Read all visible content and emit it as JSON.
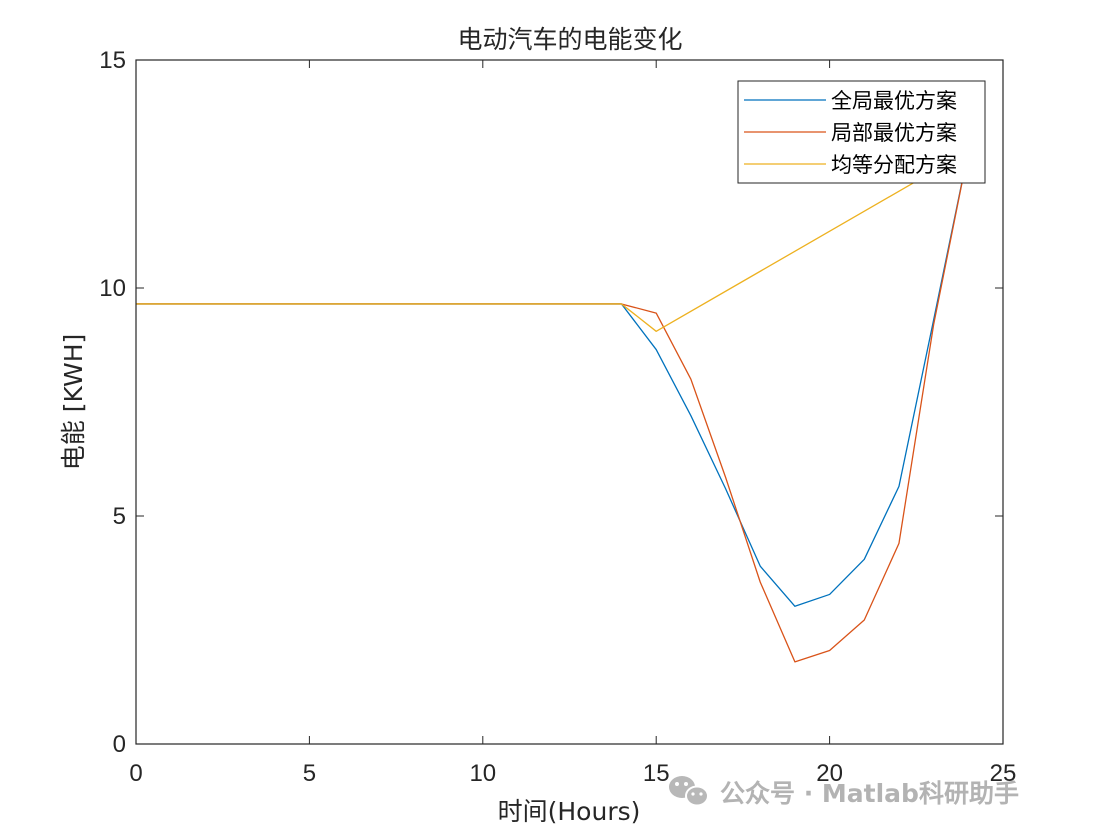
{
  "chart_data": {
    "type": "line",
    "title": "电动汽车的电能变化",
    "xlabel": "时间(Hours)",
    "ylabel": "电能 [KWH]",
    "xlim": [
      0,
      25
    ],
    "ylim": [
      0,
      15
    ],
    "xticks": [
      0,
      5,
      10,
      15,
      20,
      25
    ],
    "yticks": [
      0,
      5,
      10,
      15
    ],
    "grid": false,
    "legend_position": "top-right",
    "series": [
      {
        "name": "全局最优方案",
        "color": "#0072BD",
        "x": [
          0,
          14,
          15,
          16,
          17,
          18,
          19,
          20,
          21,
          22,
          23,
          24
        ],
        "y": [
          9.65,
          9.65,
          8.65,
          7.2,
          5.6,
          3.9,
          3.02,
          3.28,
          4.05,
          5.65,
          9.3,
          13.0
        ]
      },
      {
        "name": "局部最优方案",
        "color": "#D95319",
        "x": [
          0,
          14,
          15,
          16,
          17,
          18,
          19,
          20,
          21,
          22,
          23,
          24
        ],
        "y": [
          9.65,
          9.65,
          9.45,
          8.0,
          5.85,
          3.55,
          1.8,
          2.05,
          2.72,
          4.4,
          9.2,
          13.0
        ]
      },
      {
        "name": "均等分配方案",
        "color": "#EDB120",
        "x": [
          0,
          14,
          15,
          24
        ],
        "y": [
          9.65,
          9.65,
          9.05,
          13.0
        ]
      }
    ]
  },
  "watermark": {
    "icon": "wechat-icon",
    "text": "公众号 · Matlab科研助手"
  }
}
